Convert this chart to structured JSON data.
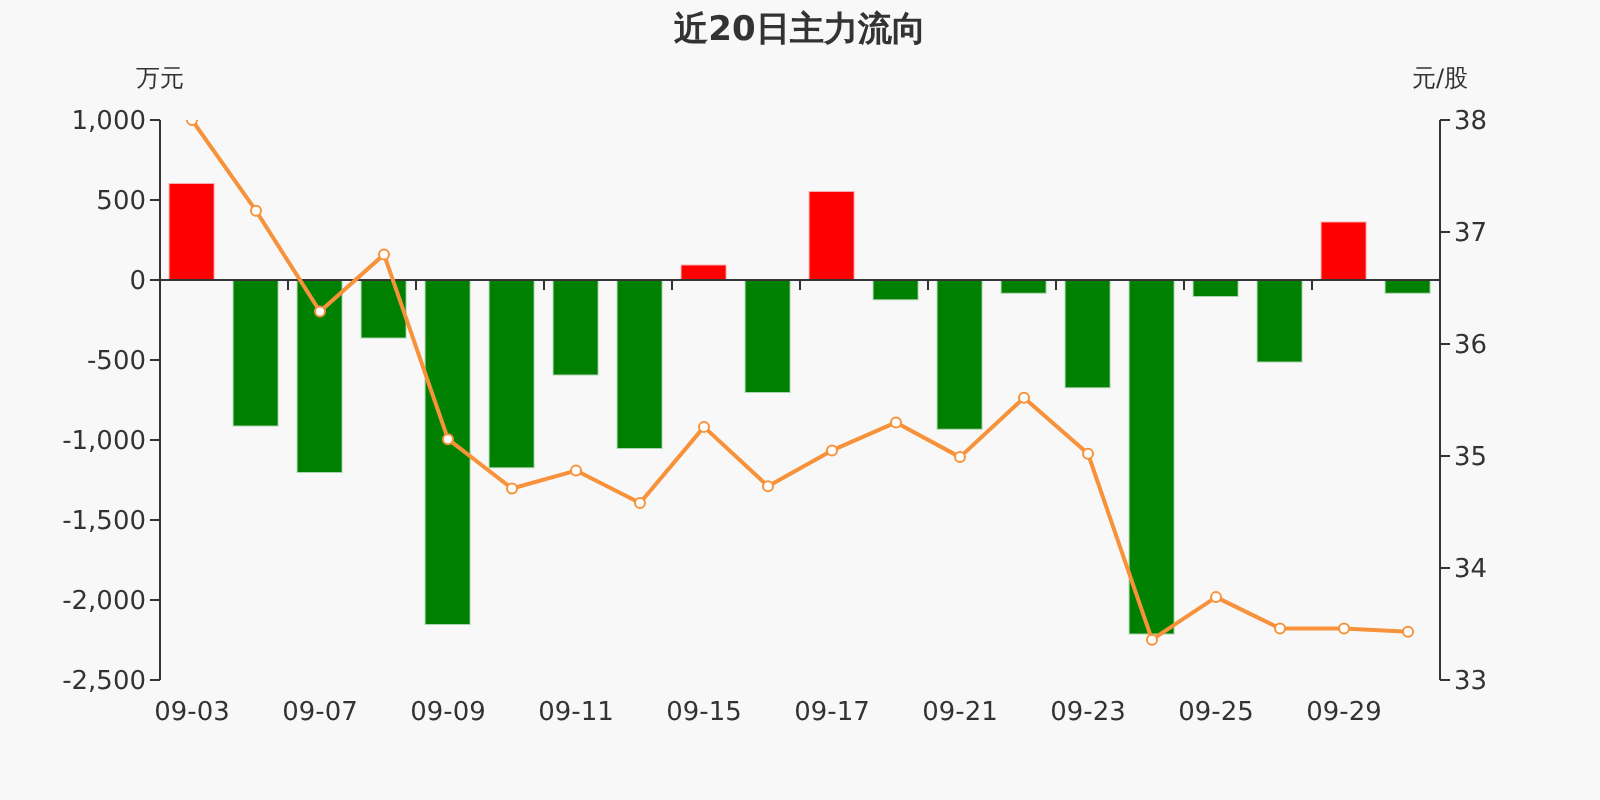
{
  "chart_data": {
    "type": "bar",
    "title": "近20日主力流向",
    "ylabel": "万元",
    "y2label": "元/股",
    "categories": [
      "09-03",
      null,
      "09-07",
      null,
      "09-09",
      null,
      "09-11",
      null,
      "09-15",
      null,
      "09-17",
      null,
      "09-21",
      null,
      "09-23",
      null,
      "09-25",
      null,
      "09-29",
      null
    ],
    "series": [
      {
        "colors": [
          "#ff0000",
          "#008000",
          "#008000",
          "#008000",
          "#008000",
          "#008000",
          "#008000",
          "#008000",
          "#ff0000",
          "#008000",
          "#ff0000",
          "#008000",
          "#008000",
          "#008000",
          "#008000",
          "#008000",
          "#008000",
          "#008000",
          "#ff0000",
          "#008000"
        ],
        "values": [
          600,
          -910,
          -1200,
          -360,
          -2150,
          -1170,
          -590,
          -1050,
          90,
          -700,
          550,
          -120,
          -930,
          -80,
          -670,
          -2210,
          -100,
          -510,
          360,
          -80
        ]
      },
      {
        "type": "line",
        "axis": "y2",
        "color": "#f7923a",
        "marker": "circle",
        "values": [
          38.0,
          37.19,
          36.29,
          36.8,
          35.15,
          34.71,
          34.87,
          34.58,
          35.26,
          34.73,
          35.05,
          35.3,
          34.99,
          35.52,
          35.02,
          33.36,
          33.74,
          33.46,
          33.46,
          33.43
        ]
      }
    ],
    "ylim": [
      -2500,
      1000
    ],
    "yticks": [
      {
        "value": 1000,
        "label": "1,000"
      },
      500,
      0,
      -500,
      {
        "value": -1000,
        "label": "-1,000"
      },
      {
        "value": -1500,
        "label": "-1,500"
      },
      {
        "value": -2000,
        "label": "-2,000"
      },
      {
        "value": -2500,
        "label": "-2,500"
      }
    ],
    "y2lim": [
      33,
      38
    ],
    "y2ticks": [
      33,
      34,
      35,
      36,
      37,
      38
    ]
  }
}
